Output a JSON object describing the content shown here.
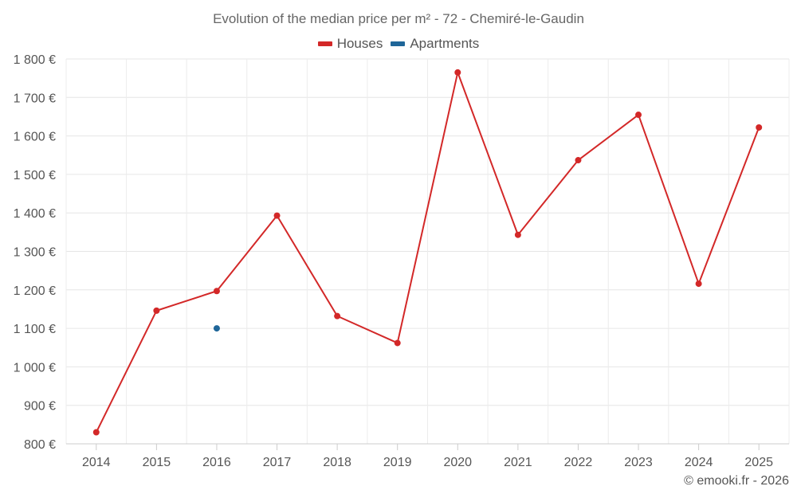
{
  "chart_data": {
    "type": "line",
    "title": "Evolution of the median price per m² - 72 - Chemiré-le-Gaudin",
    "xlabel": "",
    "ylabel": "",
    "categories": [
      "2014",
      "2015",
      "2016",
      "2017",
      "2018",
      "2019",
      "2020",
      "2021",
      "2022",
      "2023",
      "2024",
      "2025"
    ],
    "y_ticks": [
      "800 €",
      "900 €",
      "1 000 €",
      "1 100 €",
      "1 200 €",
      "1 300 €",
      "1 400 €",
      "1 500 €",
      "1 600 €",
      "1 700 €",
      "1 800 €"
    ],
    "ylim": [
      800,
      1800
    ],
    "grid": true,
    "legend_position": "top-center",
    "series": [
      {
        "name": "Houses",
        "color": "#d32828",
        "values": [
          830,
          1146,
          1197,
          1393,
          1132,
          1062,
          1765,
          1343,
          1537,
          1655,
          1216,
          1622
        ]
      },
      {
        "name": "Apartments",
        "color": "#1f6699",
        "values": [
          null,
          null,
          1100,
          null,
          null,
          null,
          null,
          null,
          null,
          null,
          null,
          null
        ]
      }
    ]
  },
  "credit": "© emooki.fr - 2026"
}
